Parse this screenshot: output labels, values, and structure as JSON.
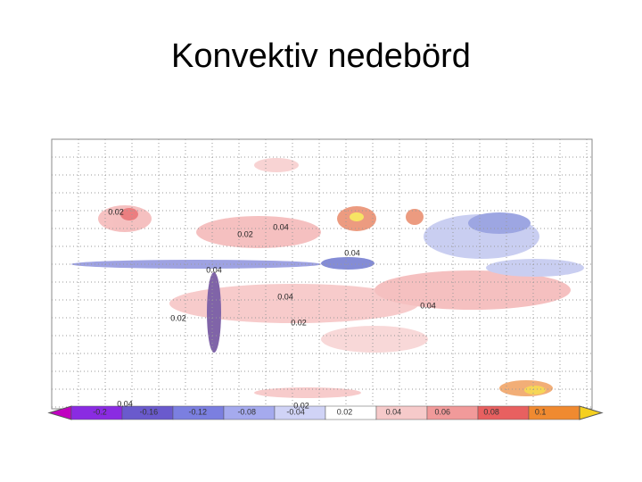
{
  "title": "Konvektiv nedebörd",
  "map": {
    "contour_labels": [
      "0.02",
      "0.04",
      "0.02",
      "0.04",
      "0.04",
      "0.04",
      "0.02",
      "0.04",
      "0.02",
      "0.02",
      "0.04"
    ]
  },
  "colorbar": {
    "labels": [
      "-0.2",
      "-0.16",
      "-0.12",
      "-0.08",
      "-0.04",
      "0.02",
      "0.04",
      "0.06",
      "0.08",
      "0.1"
    ]
  }
}
